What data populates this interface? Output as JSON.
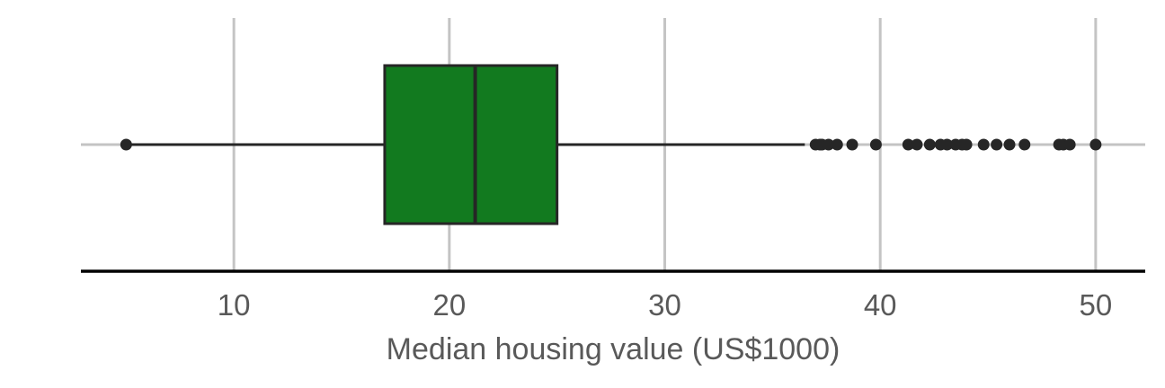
{
  "chart_data": {
    "type": "boxplot",
    "title": "",
    "xlabel": "Median housing value (US$1000)",
    "ylabel": "",
    "xlim": [
      2.9,
      52.3
    ],
    "x_ticks": [
      10,
      20,
      30,
      40,
      50
    ],
    "x_tick_labels": [
      "10",
      "20",
      "30",
      "40",
      "50"
    ],
    "grid": true,
    "orientation": "horizontal",
    "box": {
      "q1": 17.0,
      "median": 21.2,
      "q3": 25.0,
      "whisker_low": 5.0,
      "whisker_high": 36.5
    },
    "outliers": [
      5.0,
      37.0,
      37.2,
      37.3,
      37.6,
      38.0,
      38.7,
      39.8,
      41.3,
      41.7,
      42.3,
      42.8,
      43.1,
      43.5,
      43.8,
      44.0,
      44.8,
      45.4,
      46.0,
      46.7,
      48.3,
      48.5,
      48.8,
      50.0
    ],
    "colors": {
      "box_fill": "#127a1f",
      "line": "#262626",
      "grid": "#c4c4c4",
      "axis": "#000000",
      "text": "#595959"
    }
  }
}
